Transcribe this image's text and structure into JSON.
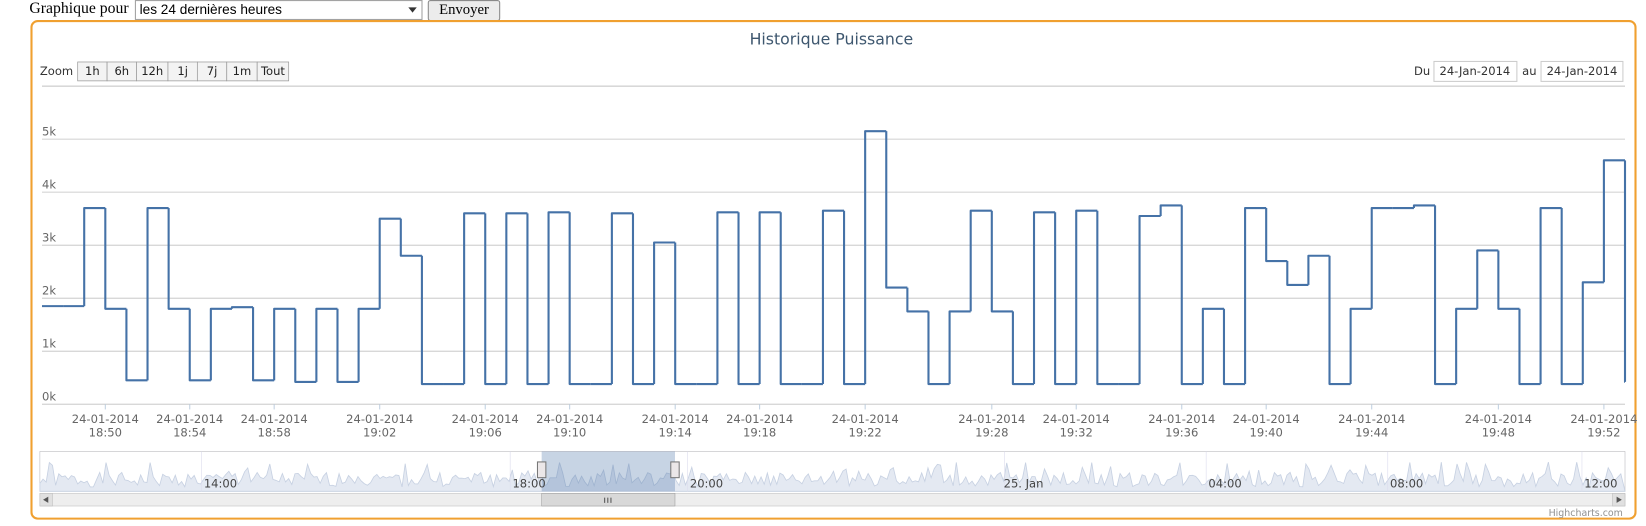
{
  "form": {
    "label": "Graphique pour",
    "select": "les 24 dernières heures",
    "button": "Envoyer"
  },
  "chart_data": {
    "type": "line",
    "step": true,
    "title": "Historique Puissance",
    "color": "#4572a7",
    "grid": true,
    "categories": [
      null,
      null,
      null,
      "24-01-2014\n18:50",
      null,
      null,
      null,
      "24-01-2014\n18:54",
      null,
      null,
      null,
      "24-01-2014\n18:58",
      null,
      null,
      null,
      null,
      "24-01-2014\n19:02",
      null,
      null,
      null,
      null,
      "24-01-2014\n19:06",
      null,
      null,
      null,
      "24-01-2014\n19:10",
      null,
      null,
      null,
      null,
      "24-01-2014\n19:14",
      null,
      null,
      null,
      "24-01-2014\n19:18",
      null,
      null,
      null,
      null,
      "24-01-2014\n19:22",
      null,
      null,
      null,
      null,
      null,
      "24-01-2014\n19:28",
      null,
      null,
      null,
      "24-01-2014\n19:32",
      null,
      null,
      null,
      null,
      "24-01-2014\n19:36",
      null,
      null,
      null,
      "24-01-2014\n19:40",
      null,
      null,
      null,
      null,
      "24-01-2014\n19:44",
      null,
      null,
      null,
      null,
      null,
      "24-01-2014\n19:48",
      null,
      null,
      null,
      null,
      "24-01-2014\n19:52",
      null
    ],
    "values": [
      1850,
      1850,
      3700,
      1800,
      450,
      3700,
      1800,
      450,
      1800,
      1830,
      450,
      1800,
      420,
      1800,
      420,
      1800,
      3500,
      2800,
      380,
      380,
      3600,
      380,
      3600,
      380,
      3620,
      380,
      380,
      3600,
      380,
      3050,
      380,
      380,
      3620,
      380,
      3620,
      380,
      380,
      3650,
      380,
      5150,
      2200,
      1750,
      380,
      1750,
      3650,
      1750,
      380,
      3620,
      380,
      3650,
      380,
      380,
      3550,
      3750,
      380,
      1800,
      380,
      3700,
      2700,
      2250,
      2800,
      380,
      1800,
      3700,
      3700,
      3750,
      380,
      1800,
      2900,
      1800,
      380,
      3700,
      380,
      2300,
      4600,
      420
    ],
    "ylim": [
      0,
      6000
    ],
    "yticks": [
      {
        "value": 0,
        "label": "0k"
      },
      {
        "value": 1000,
        "label": "1k"
      },
      {
        "value": 2000,
        "label": "2k"
      },
      {
        "value": 3000,
        "label": "3k"
      },
      {
        "value": 4000,
        "label": "4k"
      },
      {
        "value": 5000,
        "label": "5k"
      }
    ]
  },
  "ui": {
    "zoom": "Zoom",
    "buttons": [
      "1h",
      "6h",
      "12h",
      "1j",
      "7j",
      "1m",
      "Tout"
    ],
    "from_label": "Du",
    "from": "24-Jan-2014",
    "to_label": "au",
    "to": "24-Jan-2014",
    "navigator": [
      "14:00",
      "18:00",
      "20:00",
      "25. Jan",
      "04:00",
      "08:00",
      "12:00"
    ],
    "credits": "Highcharts.com"
  }
}
